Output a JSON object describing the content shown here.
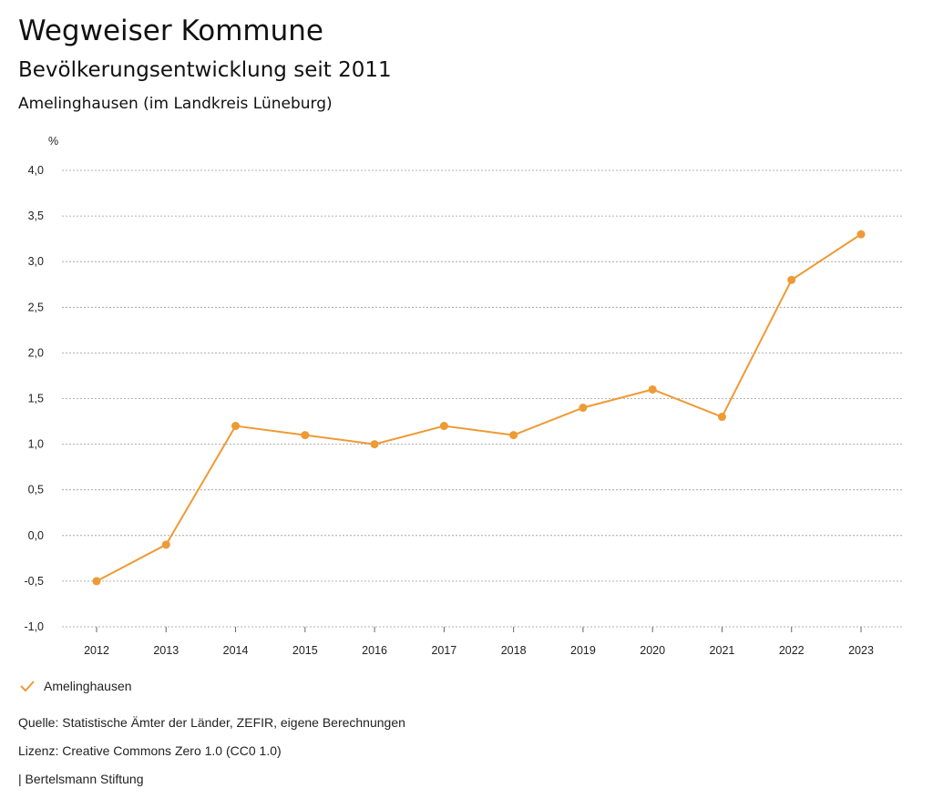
{
  "header": {
    "title": "Wegweiser Kommune",
    "subtitle": "Bevölkerungsentwicklung seit 2011",
    "region": "Amelinghausen (im Landkreis Lüneburg)"
  },
  "chart_data": {
    "type": "line",
    "title": "Bevölkerungsentwicklung seit 2011",
    "subtitle": "Amelinghausen (im Landkreis Lüneburg)",
    "xlabel": "",
    "ylabel": "%",
    "ylim": [
      -1.0,
      4.0
    ],
    "ytick_step": 0.5,
    "ytick_labels": [
      "-1,0",
      "-0,5",
      "0,0",
      "0,5",
      "1,0",
      "1,5",
      "2,0",
      "2,5",
      "3,0",
      "3,5",
      "4,0"
    ],
    "grid": true,
    "legend_position": "bottom-left",
    "categories": [
      "2012",
      "2013",
      "2014",
      "2015",
      "2016",
      "2017",
      "2018",
      "2019",
      "2020",
      "2021",
      "2022",
      "2023"
    ],
    "series": [
      {
        "name": "Amelinghausen",
        "color": "#ee9a35",
        "values": [
          -0.5,
          -0.1,
          1.2,
          1.1,
          1.0,
          1.2,
          1.1,
          1.4,
          1.6,
          1.3,
          2.8,
          3.3
        ]
      }
    ]
  },
  "legend": {
    "series_label": "Amelinghausen",
    "icon": "check-icon"
  },
  "footer": {
    "source": "Quelle: Statistische Ämter der Länder, ZEFIR, eigene Berechnungen",
    "license": "Lizenz: Creative Commons Zero 1.0 (CC0 1.0)",
    "publisher": "| Bertelsmann Stiftung"
  },
  "colors": {
    "series": "#ee9a35",
    "grid": "#999999",
    "text": "#222222"
  }
}
